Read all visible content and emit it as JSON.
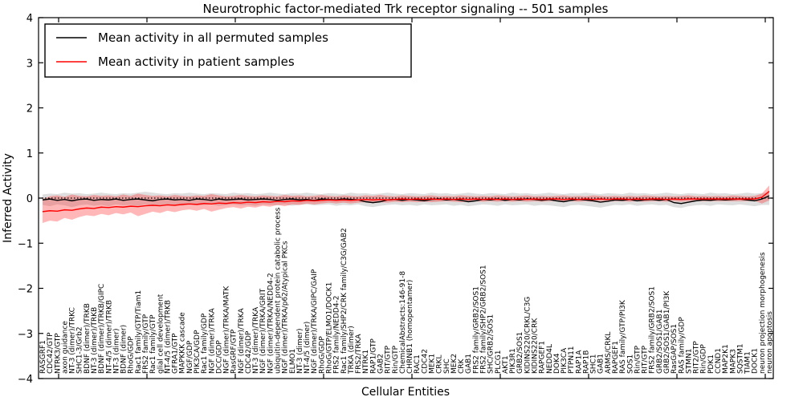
{
  "title": "Neurotrophic factor-mediated Trk receptor signaling -- 501 samples",
  "legend": {
    "items": [
      {
        "label": "Mean activity in all permuted samples",
        "color": "#000000"
      },
      {
        "label": "Mean activity in patient samples",
        "color": "#ff0000"
      }
    ]
  },
  "axes": {
    "ylabel": "Inferred Activity",
    "xlabel": "Cellular Entities",
    "ytick_labels": [
      "4",
      "3",
      "2",
      "1",
      "0",
      "−1",
      "−2",
      "−3",
      "−4"
    ],
    "ytick_values": [
      4,
      3,
      2,
      1,
      0,
      -1,
      -2,
      -3,
      -4
    ],
    "ylim": [
      -4,
      4
    ]
  },
  "colors": {
    "permuted_line": "#000000",
    "patient_line": "#ff0000",
    "permuted_band": "rgba(0,0,0,0.13)",
    "patient_band": "rgba(255,30,30,0.32)",
    "zero_line": "#000000"
  },
  "chart_data": {
    "type": "line",
    "title": "Neurotrophic factor-mediated Trk receptor signaling -- 501 samples",
    "xlabel": "Cellular Entities",
    "ylabel": "Inferred Activity",
    "ylim": [
      -4,
      4
    ],
    "grid": false,
    "legend_position": "upper left",
    "zero_line": true,
    "categories": [
      "RASGRF1",
      "CDC42/GTP",
      "NTRK3/GTP",
      "axon guidance",
      "NT-3 (dimer)/TRKC",
      "SHC1-3/Grb2",
      "BDNF (dimer)/TRKB",
      "NT-3 (dimer)/TRKB",
      "BDNF (dimer)/TRKB/GIPC",
      "NT-4/5 (dimer)/TRKB",
      "NT-3 (dimer)",
      "BDNF (dimer)",
      "RhoG/GDP",
      "Rac1 family/GTP/Tiam1",
      "FRS2 family/GTP",
      "Rac1 family/GTP",
      "glial cell development",
      "NT-4/5 (dimer)/TRKB",
      "GFRA1/GTP",
      "MAPKKK cascade",
      "NGF/GDP",
      "PIK3CA/GDP",
      "Rac1 family/GDP",
      "NGF (dimer)/TRKA",
      "DCC/GDP",
      "NGF (dimer)/TRKA/MATK",
      "RasGRF/GTP",
      "NGF (dimer)/TRKA",
      "CDC42/GDP",
      "NT-3 (dimer)/TRKA",
      "NGF (dimer)/TRKA/GRIT",
      "NGF (dimer)/TRKA/NEDD4-2",
      "ubiquitin-dependent protein catabolic process",
      "NGF (dimer)/TRKA/p62/Atypical PKCs",
      "ELMO1",
      "NT-3 (dimer)",
      "NT-4/5 (dimer)",
      "NGF (dimer)/TRKA/GIPC/GAIP",
      "RhoG/GDP",
      "RhoG/GTP/ELMO1/DOCK1",
      "FRS2 family/NEDD4-2",
      "Rac1 family/SHP2/CRK family/C3G/GAB2",
      "TRKA (dimer)",
      "FRS2/TRKA",
      "NTRK1",
      "RAP1/GTP",
      "GAB2",
      "RIT/GTP",
      "Rin/GTP",
      "ChemicalAbstracts:146-91-8",
      "CHRNB1 (homopentamer)",
      "RAC1",
      "CDC42",
      "MEK1",
      "CRKL",
      "SHC",
      "MEK2",
      "CRK",
      "GAB1",
      "FRS2 family/GRB2/SOS1",
      "FRS2 family/SHP2/GRB2/SOS1",
      "SHC/GRB2/SOS1",
      "PLCG1",
      "AKT1",
      "PIK3R1",
      "GRB2/SOS1",
      "KIDINS220/CRKL/C3G",
      "KIDINS220/CRK",
      "RAPGEF1",
      "NEDD4L",
      "DOK4",
      "PIK3CA",
      "PTPN11",
      "RAP1A",
      "RAP1B",
      "SHC1",
      "GAB1",
      "ARMS/CRKL",
      "RAPGEF1",
      "RAS family/GTP/PI3K",
      "SOS1",
      "Rin/GTP",
      "RIT/GTP",
      "FRS2 family/GRB2/SOS1",
      "GRB2/SOS1/GAB1",
      "GRB2/SOS1/GAB1/PI3K",
      "RasGAP/SOS1",
      "RAS family/GDP",
      "STMN1",
      "RIT2/GTP",
      "Rin/GDP",
      "PDK1",
      "CCND1",
      "MAP2K1",
      "MAPK3",
      "SQSTM1",
      "TIAM1",
      "DOCK1",
      "neuron projection morphogenesis",
      "neuron apoptosis"
    ],
    "series": [
      {
        "name": "Mean activity in all permuted samples",
        "color": "#000000",
        "values": [
          -0.04,
          -0.02,
          -0.05,
          -0.03,
          -0.06,
          -0.03,
          -0.02,
          -0.05,
          -0.03,
          -0.04,
          -0.02,
          -0.05,
          -0.03,
          -0.02,
          -0.04,
          -0.06,
          -0.03,
          -0.02,
          -0.04,
          -0.03,
          -0.05,
          -0.02,
          -0.03,
          -0.05,
          -0.02,
          -0.04,
          -0.03,
          -0.02,
          -0.04,
          -0.03,
          -0.02,
          -0.03,
          -0.05,
          -0.03,
          -0.02,
          -0.04,
          -0.03,
          -0.05,
          -0.02,
          -0.03,
          -0.04,
          -0.02,
          -0.03,
          -0.04,
          -0.08,
          -0.1,
          -0.08,
          -0.04,
          -0.03,
          -0.05,
          -0.03,
          -0.04,
          -0.06,
          -0.03,
          -0.02,
          -0.04,
          -0.03,
          -0.05,
          -0.08,
          -0.06,
          -0.03,
          -0.04,
          -0.02,
          -0.05,
          -0.03,
          -0.04,
          -0.02,
          -0.03,
          -0.05,
          -0.03,
          -0.06,
          -0.08,
          -0.05,
          -0.03,
          -0.04,
          -0.06,
          -0.09,
          -0.07,
          -0.04,
          -0.05,
          -0.03,
          -0.06,
          -0.04,
          -0.03,
          -0.05,
          -0.03,
          -0.1,
          -0.12,
          -0.09,
          -0.06,
          -0.04,
          -0.05,
          -0.03,
          -0.04,
          -0.03,
          -0.02,
          -0.04,
          -0.06,
          -0.02,
          0.05
        ]
      },
      {
        "name": "Mean activity in patient samples",
        "color": "#ff0000",
        "values": [
          -0.3,
          -0.28,
          -0.29,
          -0.26,
          -0.27,
          -0.24,
          -0.22,
          -0.23,
          -0.2,
          -0.21,
          -0.19,
          -0.2,
          -0.18,
          -0.19,
          -0.17,
          -0.16,
          -0.17,
          -0.15,
          -0.16,
          -0.14,
          -0.13,
          -0.14,
          -0.12,
          -0.13,
          -0.11,
          -0.12,
          -0.1,
          -0.11,
          -0.09,
          -0.1,
          -0.08,
          -0.09,
          -0.07,
          -0.08,
          -0.06,
          -0.07,
          -0.05,
          -0.06,
          -0.05,
          -0.04,
          -0.05,
          -0.04,
          -0.05,
          -0.04,
          -0.03,
          -0.04,
          -0.03,
          -0.04,
          -0.03,
          -0.02,
          -0.03,
          -0.02,
          -0.03,
          -0.02,
          -0.03,
          -0.02,
          -0.03,
          -0.02,
          -0.03,
          -0.02,
          -0.03,
          -0.02,
          -0.03,
          -0.02,
          -0.03,
          -0.02,
          -0.03,
          -0.02,
          -0.03,
          -0.02,
          -0.02,
          -0.03,
          -0.02,
          -0.03,
          -0.02,
          -0.03,
          -0.02,
          -0.03,
          -0.02,
          -0.02,
          -0.03,
          -0.02,
          -0.03,
          -0.02,
          -0.02,
          -0.03,
          -0.02,
          -0.03,
          -0.02,
          -0.02,
          -0.02,
          -0.02,
          -0.02,
          -0.02,
          -0.02,
          -0.02,
          -0.02,
          -0.02,
          0.02,
          0.15
        ]
      }
    ],
    "bands": [
      {
        "name": "permuted samples range",
        "color": "rgba(0,0,0,0.13)",
        "upper": [
          0.08,
          0.1,
          0.09,
          0.12,
          0.1,
          0.11,
          0.09,
          0.1,
          0.12,
          0.1,
          0.09,
          0.11,
          0.1,
          0.12,
          0.14,
          0.12,
          0.1,
          0.09,
          0.11,
          0.1,
          0.12,
          0.1,
          0.09,
          0.11,
          0.1,
          0.09,
          0.12,
          0.1,
          0.11,
          0.09,
          0.1,
          0.12,
          0.1,
          0.09,
          0.11,
          0.1,
          0.12,
          0.1,
          0.09,
          0.11,
          0.1,
          0.09,
          0.12,
          0.1,
          0.11,
          0.09,
          0.1,
          0.12,
          0.1,
          0.09,
          0.11,
          0.1,
          0.09,
          0.12,
          0.1,
          0.11,
          0.09,
          0.1,
          0.12,
          0.1,
          0.09,
          0.11,
          0.1,
          0.09,
          0.12,
          0.1,
          0.11,
          0.09,
          0.1,
          0.12,
          0.1,
          0.09,
          0.11,
          0.1,
          0.12,
          0.1,
          0.09,
          0.11,
          0.1,
          0.09,
          0.12,
          0.1,
          0.11,
          0.09,
          0.1,
          0.12,
          0.1,
          0.09,
          0.11,
          0.1,
          0.09,
          0.12,
          0.1,
          0.11,
          0.09,
          0.1,
          0.12,
          0.1,
          0.11,
          0.12
        ],
        "lower": [
          -0.15,
          -0.18,
          -0.14,
          -0.16,
          -0.2,
          -0.16,
          -0.14,
          -0.17,
          -0.15,
          -0.18,
          -0.14,
          -0.16,
          -0.15,
          -0.17,
          -0.14,
          -0.16,
          -0.18,
          -0.14,
          -0.15,
          -0.17,
          -0.14,
          -0.16,
          -0.15,
          -0.14,
          -0.17,
          -0.15,
          -0.14,
          -0.16,
          -0.15,
          -0.17,
          -0.14,
          -0.15,
          -0.16,
          -0.14,
          -0.17,
          -0.15,
          -0.14,
          -0.16,
          -0.15,
          -0.14,
          -0.17,
          -0.15,
          -0.16,
          -0.14,
          -0.18,
          -0.2,
          -0.17,
          -0.15,
          -0.14,
          -0.16,
          -0.15,
          -0.17,
          -0.14,
          -0.16,
          -0.15,
          -0.14,
          -0.17,
          -0.15,
          -0.18,
          -0.16,
          -0.14,
          -0.15,
          -0.17,
          -0.14,
          -0.16,
          -0.15,
          -0.14,
          -0.17,
          -0.15,
          -0.16,
          -0.18,
          -0.2,
          -0.16,
          -0.15,
          -0.17,
          -0.19,
          -0.21,
          -0.18,
          -0.15,
          -0.16,
          -0.14,
          -0.17,
          -0.15,
          -0.14,
          -0.16,
          -0.15,
          -0.2,
          -0.22,
          -0.18,
          -0.16,
          -0.15,
          -0.17,
          -0.14,
          -0.15,
          -0.16,
          -0.14,
          -0.16,
          -0.18,
          -0.15,
          -0.15
        ]
      },
      {
        "name": "patient samples range",
        "color": "rgba(255,30,30,0.32)",
        "upper": [
          -0.02,
          0.04,
          0.06,
          0.03,
          0.08,
          0.05,
          0.04,
          0.07,
          0.05,
          0.06,
          0.04,
          0.08,
          0.05,
          0.1,
          0.07,
          0.05,
          0.06,
          0.04,
          0.07,
          0.05,
          0.04,
          0.06,
          0.05,
          0.09,
          0.06,
          0.04,
          0.05,
          0.07,
          0.05,
          0.04,
          0.06,
          0.05,
          0.04,
          0.07,
          0.05,
          0.06,
          0.04,
          0.05,
          0.07,
          0.05,
          0.04,
          0.06,
          0.05,
          0.04,
          0.06,
          0.05,
          0.07,
          0.05,
          0.04,
          0.06,
          0.05,
          0.04,
          0.05,
          0.06,
          0.04,
          0.05,
          0.04,
          0.06,
          0.05,
          0.04,
          0.05,
          0.04,
          0.06,
          0.05,
          0.04,
          0.05,
          0.06,
          0.04,
          0.05,
          0.04,
          0.05,
          0.06,
          0.04,
          0.05,
          0.04,
          0.06,
          0.05,
          0.04,
          0.05,
          0.04,
          0.05,
          0.04,
          0.06,
          0.05,
          0.04,
          0.05,
          0.04,
          0.05,
          0.06,
          0.04,
          0.05,
          0.04,
          0.05,
          0.04,
          0.06,
          0.05,
          0.04,
          0.05,
          0.1,
          0.28
        ],
        "lower": [
          -0.55,
          -0.5,
          -0.52,
          -0.44,
          -0.48,
          -0.42,
          -0.38,
          -0.4,
          -0.35,
          -0.38,
          -0.33,
          -0.36,
          -0.32,
          -0.4,
          -0.35,
          -0.3,
          -0.33,
          -0.28,
          -0.31,
          -0.27,
          -0.25,
          -0.28,
          -0.24,
          -0.3,
          -0.26,
          -0.22,
          -0.2,
          -0.23,
          -0.19,
          -0.21,
          -0.17,
          -0.19,
          -0.15,
          -0.18,
          -0.14,
          -0.15,
          -0.12,
          -0.14,
          -0.12,
          -0.1,
          -0.12,
          -0.1,
          -0.12,
          -0.1,
          -0.09,
          -0.11,
          -0.09,
          -0.1,
          -0.08,
          -0.09,
          -0.08,
          -0.09,
          -0.08,
          -0.09,
          -0.08,
          -0.07,
          -0.08,
          -0.09,
          -0.08,
          -0.07,
          -0.08,
          -0.07,
          -0.08,
          -0.07,
          -0.08,
          -0.07,
          -0.08,
          -0.07,
          -0.08,
          -0.07,
          -0.07,
          -0.08,
          -0.07,
          -0.08,
          -0.07,
          -0.08,
          -0.07,
          -0.08,
          -0.07,
          -0.07,
          -0.08,
          -0.07,
          -0.08,
          -0.07,
          -0.07,
          -0.08,
          -0.07,
          -0.08,
          -0.07,
          -0.07,
          -0.07,
          -0.07,
          -0.07,
          -0.07,
          -0.07,
          -0.07,
          -0.07,
          -0.06,
          -0.12,
          -0.05
        ]
      }
    ]
  }
}
